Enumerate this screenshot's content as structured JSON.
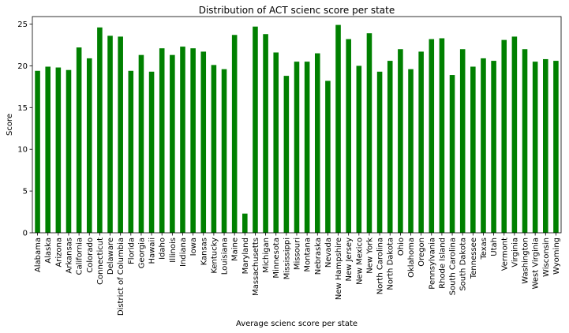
{
  "chart_data": {
    "type": "bar",
    "title": "Distribution of ACT scienc score per state",
    "xlabel": "Average scienc score per state",
    "ylabel": "Score",
    "ylim": [
      0,
      25.9
    ],
    "yticks": [
      0,
      5,
      10,
      15,
      20,
      25
    ],
    "grid": false,
    "legend": "none",
    "bar_color": "#008000",
    "categories": [
      "Alabama",
      "Alaska",
      "Arizona",
      "Arkansas",
      "California",
      "Colorado",
      "Connecticut",
      "Delaware",
      "District of Columbia",
      "Florida",
      "Georgia",
      "Hawaii",
      "Idaho",
      "Illinois",
      "Indiana",
      "Iowa",
      "Kansas",
      "Kentucky",
      "Louisiana",
      "Maine",
      "Maryland",
      "Massachusetts",
      "Michigan",
      "Minnesota",
      "Mississippi",
      "Missouri",
      "Montana",
      "Nebraska",
      "Nevada",
      "New Hampshire",
      "New Jersey",
      "New Mexico",
      "New York",
      "North Carolina",
      "North Dakota",
      "Ohio",
      "Oklahoma",
      "Oregon",
      "Pennsylvania",
      "Rhode Island",
      "South Carolina",
      "South Dakota",
      "Tennessee",
      "Texas",
      "Utah",
      "Vermont",
      "Virginia",
      "Washington",
      "West Virginia",
      "Wisconsin",
      "Wyoming"
    ],
    "values": [
      19.4,
      19.9,
      19.8,
      19.5,
      22.2,
      20.9,
      24.6,
      23.6,
      23.5,
      19.4,
      21.3,
      19.3,
      22.1,
      21.3,
      22.3,
      22.1,
      21.7,
      20.1,
      19.6,
      23.7,
      2.3,
      24.7,
      23.8,
      21.6,
      18.8,
      20.5,
      20.5,
      21.5,
      18.2,
      24.9,
      23.2,
      20.0,
      23.9,
      19.3,
      20.6,
      22.0,
      19.6,
      21.7,
      23.2,
      23.3,
      18.9,
      22.0,
      19.9,
      20.9,
      20.6,
      23.1,
      23.5,
      22.0,
      20.5,
      20.8,
      20.6
    ]
  }
}
